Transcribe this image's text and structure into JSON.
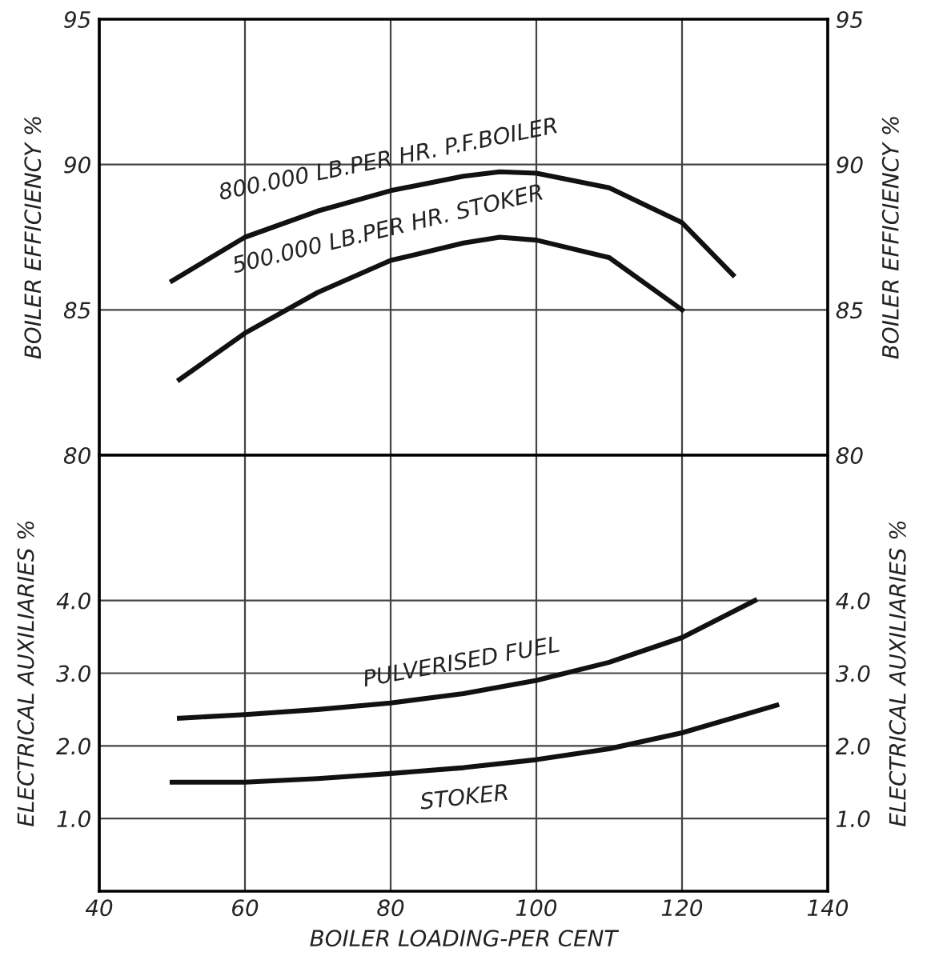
{
  "chart_data": [
    {
      "type": "line",
      "ylabel": "BOILER EFFICIENCY %",
      "y2label": "BOILER EFFICIENCY %",
      "xlim": [
        40,
        140
      ],
      "xticks": [
        40,
        60,
        80,
        100,
        120,
        140
      ],
      "ylim": [
        80,
        95
      ],
      "yticks": [
        80,
        85,
        90,
        95
      ],
      "y2lim": [
        80,
        95
      ],
      "y2ticks": [
        80,
        85,
        90,
        95
      ],
      "tick_labels": "y",
      "grid": true,
      "legend": false,
      "line_style": "solid",
      "marker": "none",
      "series": [
        {
          "name": "800.000 LB.PER HR. P.F.BOILER",
          "color": "#111111",
          "x": [
            50,
            60,
            70,
            80,
            90,
            95,
            100,
            110,
            120,
            127
          ],
          "values": [
            86.0,
            87.5,
            88.4,
            89.1,
            89.6,
            89.75,
            89.7,
            89.2,
            88.0,
            86.2
          ]
        },
        {
          "name": "500.000 LB.PER HR. STOKER",
          "color": "#111111",
          "x": [
            51,
            60,
            70,
            80,
            90,
            95,
            100,
            110,
            120
          ],
          "values": [
            82.6,
            84.2,
            85.6,
            86.7,
            87.3,
            87.5,
            87.4,
            86.8,
            85.0
          ]
        }
      ]
    },
    {
      "type": "line",
      "ylabel": "ELECTRICAL AUXILIARIES %",
      "y2label": "ELECTRICAL AUXILIARIES %",
      "xlabel": "BOILER LOADING-PER CENT",
      "xlim": [
        40,
        140
      ],
      "xticks": [
        40,
        {
          "value": 60,
          "label": "60"
        },
        80,
        100,
        120,
        140
      ],
      "ylim": [
        0,
        6
      ],
      "yticks": [
        {
          "value": 1,
          "label": "1.0"
        },
        {
          "value": 2,
          "label": "2.0"
        },
        {
          "value": 3,
          "label": "3.0"
        },
        {
          "value": 4,
          "label": "4.0"
        }
      ],
      "y2lim": [
        0,
        6
      ],
      "y2ticks": [
        {
          "value": 1,
          "label": "1.0"
        },
        {
          "value": 2,
          "label": "2.0"
        },
        {
          "value": 3,
          "label": "3.0"
        },
        {
          "value": 4,
          "label": "4.0"
        }
      ],
      "grid": true,
      "legend": false,
      "line_style": "solid",
      "marker": "none",
      "series": [
        {
          "name": "PULVERISED FUEL",
          "color": "#111111",
          "x": [
            51,
            60,
            70,
            80,
            90,
            100,
            110,
            120,
            130
          ],
          "values": [
            2.38,
            2.43,
            2.5,
            2.59,
            2.72,
            2.9,
            3.15,
            3.49,
            4.0
          ]
        },
        {
          "name": "STOKER",
          "color": "#111111",
          "x": [
            50,
            60,
            70,
            80,
            90,
            100,
            110,
            120,
            133
          ],
          "values": [
            1.5,
            1.5,
            1.55,
            1.62,
            1.7,
            1.81,
            1.96,
            2.18,
            2.56
          ]
        }
      ]
    }
  ]
}
